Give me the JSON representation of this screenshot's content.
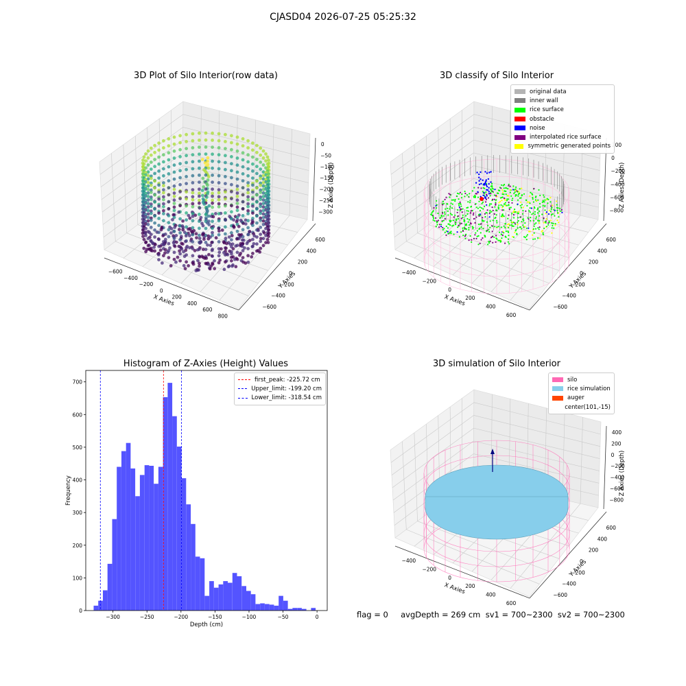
{
  "suptitle": "CJASD04 2026-07-25 05:25:32",
  "panel1": {
    "title": "3D Plot of Silo Interior(row data)",
    "xlabel": "X Axies",
    "ylabel": "Y Axies",
    "zlabel": "Z Axies (Depth)",
    "xticks": [
      "−600",
      "−400",
      "−200",
      "0",
      "200",
      "400",
      "600",
      "800"
    ],
    "yticks": [
      "600",
      "400",
      "200",
      "0",
      "−200",
      "−400",
      "−600"
    ],
    "zticks": [
      "0",
      "−50",
      "−100",
      "−150",
      "−200",
      "−250",
      "−300"
    ]
  },
  "panel2": {
    "title": "3D classify of Silo Interior",
    "xlabel": "X Axies",
    "ylabel": "Y Axies",
    "zlabel": "Z Axies (Depth)",
    "xticks": [
      "−400",
      "−200",
      "0",
      "200",
      "400",
      "600"
    ],
    "yticks": [
      "600",
      "400",
      "200",
      "0",
      "−200",
      "−400",
      "−600"
    ],
    "zticks": [
      "200",
      "0",
      "−200",
      "−400",
      "−600",
      "−800"
    ],
    "legend": [
      {
        "label": "original data",
        "color": "#b4b4b4"
      },
      {
        "label": "inner wall",
        "color": "#808080"
      },
      {
        "label": "rice surface",
        "color": "#00ff00"
      },
      {
        "label": "obstacle",
        "color": "#ff0000"
      },
      {
        "label": "noise",
        "color": "#0000ff"
      },
      {
        "label": "interpolated rice surface",
        "color": "#800080"
      },
      {
        "label": "symmetric generated points",
        "color": "#ffff00"
      }
    ]
  },
  "panel3": {
    "title": "Histogram of Z-Axies (Height) Values",
    "legend": {
      "first_peak": "first_peak: -225.72 cm",
      "upper": "Upper_limit: -199.20 cm",
      "lower": "Lower_limit: -318.54 cm"
    }
  },
  "panel4": {
    "title": "3D simulation of Silo Interior",
    "xlabel": "X Axies",
    "ylabel": "Y Axies",
    "zlabel": "Z Axies (Depth)",
    "xticks": [
      "−400",
      "−200",
      "0",
      "200",
      "400",
      "600"
    ],
    "yticks": [
      "600",
      "400",
      "200",
      "0",
      "−200",
      "−400",
      "−600"
    ],
    "zticks": [
      "400",
      "200",
      "0",
      "−200",
      "−400",
      "−600",
      "−800"
    ],
    "legend": [
      {
        "label": "silo",
        "color": "#ff69b4"
      },
      {
        "label": "rice simulation",
        "color": "#87ceeb"
      },
      {
        "label": "auger",
        "color": "#ff4500"
      },
      {
        "label": "center(101,-15)",
        "color": ""
      }
    ]
  },
  "status": "flag = 0     avgDepth = 269 cm  sv1 = 700~2300  sv2 = 700~2300",
  "colors": {
    "hist_bar": "#4b4bff",
    "peak_line": "#ff0000",
    "limit_line": "#0000ff"
  },
  "chart_data": [
    {
      "type": "scatter",
      "title": "3D Plot of Silo Interior(row data)",
      "xlabel": "X Axies",
      "ylabel": "Y Axies",
      "zlabel": "Z Axies (Depth)",
      "xlim": [
        -600,
        800
      ],
      "ylim": [
        -600,
        600
      ],
      "zlim": [
        -320,
        0
      ],
      "colormap": "viridis"
    },
    {
      "type": "scatter",
      "title": "3D classify of Silo Interior",
      "xlabel": "X Axies",
      "ylabel": "Y Axies",
      "zlabel": "Z Axies (Depth)",
      "xlim": [
        -400,
        600
      ],
      "ylim": [
        -600,
        600
      ],
      "zlim": [
        -800,
        200
      ],
      "legend": [
        "original data",
        "inner wall",
        "rice surface",
        "obstacle",
        "noise",
        "interpolated rice surface",
        "symmetric generated points"
      ],
      "legend_position": "top-right"
    },
    {
      "type": "bar",
      "title": "Histogram of Z-Axies (Height) Values",
      "xlabel": "Depth (cm)",
      "ylabel": "Frequency",
      "xlim": [
        -340,
        15
      ],
      "ylim": [
        0,
        735
      ],
      "x_ticks": [
        -300,
        -250,
        -200,
        -150,
        -100,
        -50,
        0
      ],
      "y_ticks": [
        0,
        100,
        200,
        300,
        400,
        500,
        600,
        700
      ],
      "bin_width": 6.8,
      "bin_start": -328.4,
      "values": [
        15,
        30,
        62,
        143,
        280,
        440,
        488,
        513,
        435,
        350,
        415,
        445,
        443,
        388,
        440,
        653,
        697,
        595,
        502,
        405,
        325,
        265,
        165,
        160,
        45,
        90,
        70,
        80,
        90,
        85,
        115,
        105,
        75,
        60,
        50,
        20,
        22,
        20,
        18,
        15,
        45,
        30,
        5,
        8,
        8,
        5,
        0,
        8
      ],
      "vlines": [
        {
          "label": "first_peak: -225.72 cm",
          "x": -225.72,
          "color": "red"
        },
        {
          "label": "Upper_limit: -199.20 cm",
          "x": -199.2,
          "color": "blue"
        },
        {
          "label": "Lower_limit: -318.54 cm",
          "x": -318.54,
          "color": "blue"
        }
      ],
      "legend_position": "top-right"
    },
    {
      "type": "scatter",
      "title": "3D simulation of Silo Interior",
      "xlabel": "X Axies",
      "ylabel": "Y Axies",
      "zlabel": "Z Axies (Depth)",
      "xlim": [
        -400,
        600
      ],
      "ylim": [
        -600,
        600
      ],
      "zlim": [
        -800,
        400
      ],
      "legend": [
        "silo",
        "rice simulation",
        "auger",
        "center(101,-15)"
      ],
      "legend_position": "top-right"
    }
  ]
}
